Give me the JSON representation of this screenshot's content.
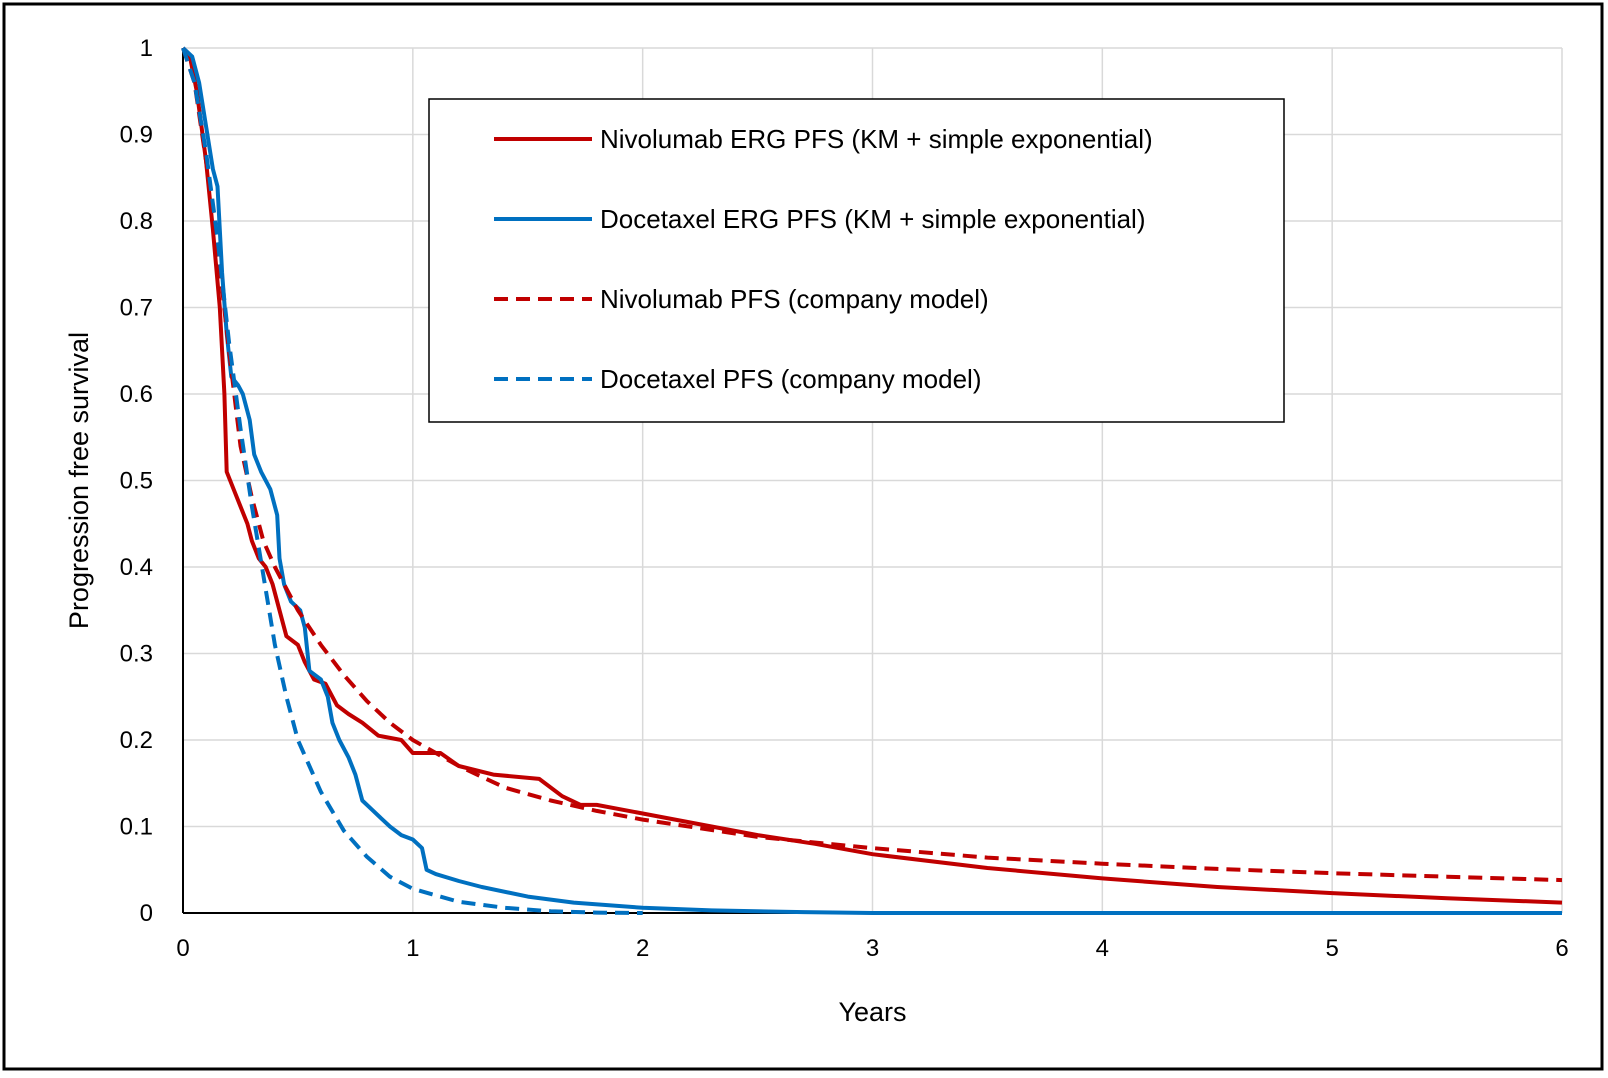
{
  "chart_data": {
    "type": "line",
    "title": "",
    "xlabel": "Years",
    "ylabel": "Progression free survival",
    "xlim": [
      0,
      6
    ],
    "ylim": [
      0,
      1
    ],
    "xticks": [
      0,
      1,
      2,
      3,
      4,
      5,
      6
    ],
    "yticks": [
      0,
      0.1,
      0.2,
      0.3,
      0.4,
      0.5,
      0.6,
      0.7,
      0.8,
      0.9,
      1
    ],
    "ytick_labels": [
      "0",
      "0.1",
      "0.2",
      "0.3",
      "0.4",
      "0.5",
      "0.6",
      "0.7",
      "0.8",
      "0.9",
      "1"
    ],
    "grid": true,
    "legend_position": "top-center",
    "series": [
      {
        "name": "Nivolumab ERG PFS (KM + simple exponential)",
        "color": "#c00000",
        "dash": "solid",
        "step": true,
        "points": [
          [
            0,
            1
          ],
          [
            0.03,
            0.99
          ],
          [
            0.06,
            0.95
          ],
          [
            0.1,
            0.87
          ],
          [
            0.13,
            0.79
          ],
          [
            0.16,
            0.7
          ],
          [
            0.18,
            0.6
          ],
          [
            0.19,
            0.51
          ],
          [
            0.22,
            0.49
          ],
          [
            0.25,
            0.47
          ],
          [
            0.28,
            0.45
          ],
          [
            0.3,
            0.43
          ],
          [
            0.33,
            0.41
          ],
          [
            0.36,
            0.4
          ],
          [
            0.39,
            0.38
          ],
          [
            0.42,
            0.35
          ],
          [
            0.45,
            0.32
          ],
          [
            0.5,
            0.31
          ],
          [
            0.53,
            0.29
          ],
          [
            0.57,
            0.27
          ],
          [
            0.62,
            0.265
          ],
          [
            0.67,
            0.24
          ],
          [
            0.72,
            0.23
          ],
          [
            0.78,
            0.22
          ],
          [
            0.85,
            0.205
          ],
          [
            0.95,
            0.2
          ],
          [
            1.0,
            0.185
          ],
          [
            1.12,
            0.185
          ],
          [
            1.2,
            0.17
          ],
          [
            1.35,
            0.16
          ],
          [
            1.55,
            0.155
          ],
          [
            1.65,
            0.135
          ],
          [
            1.73,
            0.125
          ],
          [
            1.8,
            0.125
          ],
          [
            2.0,
            0.115
          ],
          [
            2.3,
            0.1
          ],
          [
            2.5,
            0.09
          ],
          [
            2.75,
            0.08
          ],
          [
            3.0,
            0.068
          ],
          [
            3.5,
            0.052
          ],
          [
            4.0,
            0.04
          ],
          [
            4.5,
            0.03
          ],
          [
            5.0,
            0.023
          ],
          [
            5.5,
            0.017
          ],
          [
            6.0,
            0.012
          ]
        ]
      },
      {
        "name": "Docetaxel ERG PFS (KM + simple exponential)",
        "color": "#0070c0",
        "dash": "solid",
        "step": true,
        "points": [
          [
            0,
            1
          ],
          [
            0.04,
            0.99
          ],
          [
            0.07,
            0.96
          ],
          [
            0.1,
            0.91
          ],
          [
            0.13,
            0.86
          ],
          [
            0.15,
            0.84
          ],
          [
            0.17,
            0.74
          ],
          [
            0.19,
            0.67
          ],
          [
            0.21,
            0.62
          ],
          [
            0.24,
            0.61
          ],
          [
            0.26,
            0.6
          ],
          [
            0.29,
            0.57
          ],
          [
            0.31,
            0.53
          ],
          [
            0.34,
            0.51
          ],
          [
            0.38,
            0.49
          ],
          [
            0.41,
            0.46
          ],
          [
            0.42,
            0.41
          ],
          [
            0.44,
            0.38
          ],
          [
            0.47,
            0.36
          ],
          [
            0.51,
            0.35
          ],
          [
            0.53,
            0.33
          ],
          [
            0.55,
            0.28
          ],
          [
            0.6,
            0.27
          ],
          [
            0.63,
            0.25
          ],
          [
            0.65,
            0.22
          ],
          [
            0.68,
            0.2
          ],
          [
            0.72,
            0.18
          ],
          [
            0.75,
            0.16
          ],
          [
            0.78,
            0.13
          ],
          [
            0.82,
            0.12
          ],
          [
            0.86,
            0.11
          ],
          [
            0.9,
            0.1
          ],
          [
            0.95,
            0.09
          ],
          [
            1.0,
            0.085
          ],
          [
            1.04,
            0.075
          ],
          [
            1.06,
            0.05
          ],
          [
            1.1,
            0.045
          ],
          [
            1.2,
            0.037
          ],
          [
            1.3,
            0.03
          ],
          [
            1.5,
            0.019
          ],
          [
            1.7,
            0.012
          ],
          [
            2.0,
            0.006
          ],
          [
            2.3,
            0.003
          ],
          [
            2.7,
            0.001
          ],
          [
            3.0,
            0
          ],
          [
            6.0,
            0
          ]
        ]
      },
      {
        "name": "Nivolumab PFS (company model)",
        "color": "#c00000",
        "dash": "dashed",
        "step": false,
        "points": [
          [
            0,
            1
          ],
          [
            0.05,
            0.96
          ],
          [
            0.1,
            0.87
          ],
          [
            0.15,
            0.77
          ],
          [
            0.2,
            0.65
          ],
          [
            0.25,
            0.54
          ],
          [
            0.3,
            0.48
          ],
          [
            0.35,
            0.43
          ],
          [
            0.4,
            0.4
          ],
          [
            0.5,
            0.35
          ],
          [
            0.6,
            0.31
          ],
          [
            0.7,
            0.275
          ],
          [
            0.8,
            0.245
          ],
          [
            0.9,
            0.22
          ],
          [
            1.0,
            0.2
          ],
          [
            1.2,
            0.17
          ],
          [
            1.4,
            0.145
          ],
          [
            1.6,
            0.13
          ],
          [
            1.8,
            0.118
          ],
          [
            2.0,
            0.108
          ],
          [
            2.5,
            0.088
          ],
          [
            3.0,
            0.075
          ],
          [
            3.5,
            0.064
          ],
          [
            4.0,
            0.057
          ],
          [
            4.5,
            0.051
          ],
          [
            5.0,
            0.046
          ],
          [
            5.5,
            0.042
          ],
          [
            6.0,
            0.038
          ]
        ]
      },
      {
        "name": "Docetaxel PFS (company model)",
        "color": "#0070c0",
        "dash": "dashed",
        "step": false,
        "points": [
          [
            0,
            1
          ],
          [
            0.05,
            0.96
          ],
          [
            0.1,
            0.88
          ],
          [
            0.15,
            0.78
          ],
          [
            0.2,
            0.66
          ],
          [
            0.25,
            0.56
          ],
          [
            0.3,
            0.47
          ],
          [
            0.35,
            0.39
          ],
          [
            0.4,
            0.31
          ],
          [
            0.45,
            0.25
          ],
          [
            0.5,
            0.2
          ],
          [
            0.6,
            0.14
          ],
          [
            0.7,
            0.095
          ],
          [
            0.8,
            0.065
          ],
          [
            0.9,
            0.042
          ],
          [
            1.0,
            0.028
          ],
          [
            1.2,
            0.013
          ],
          [
            1.4,
            0.006
          ],
          [
            1.6,
            0.002
          ],
          [
            1.8,
            0.0005
          ],
          [
            2.0,
            0
          ]
        ]
      }
    ]
  }
}
